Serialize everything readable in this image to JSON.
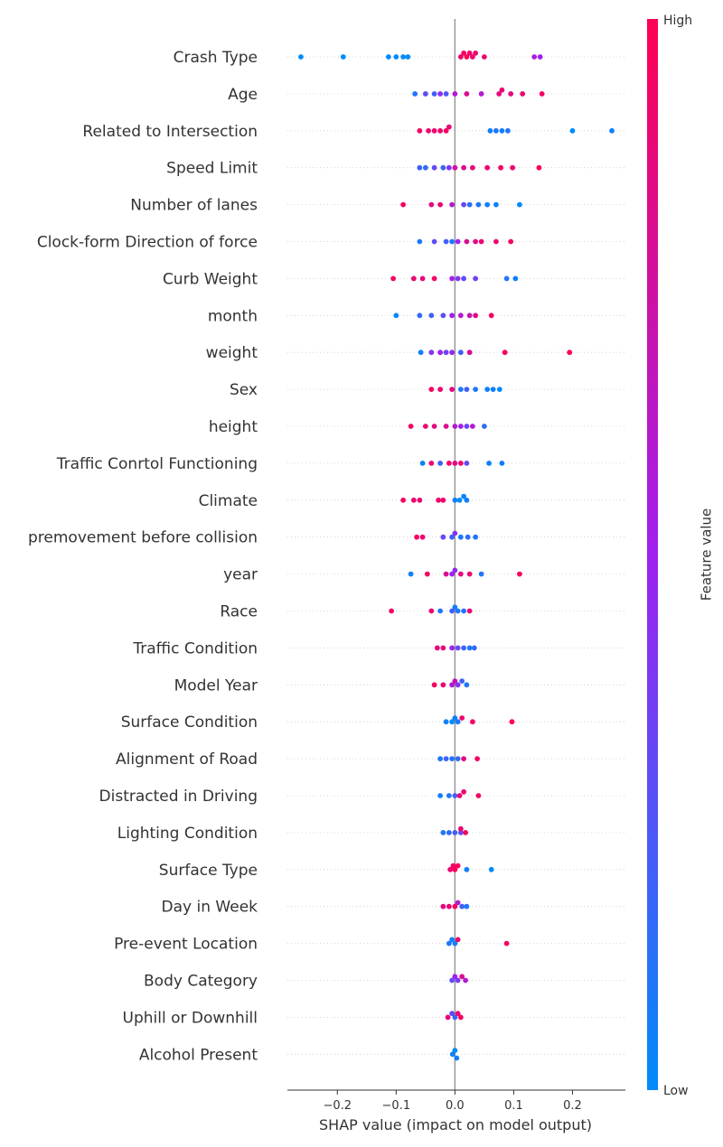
{
  "chart_data": {
    "type": "scatter",
    "subtype": "shap_beeswarm",
    "xlabel": "SHAP value (impact on model output)",
    "xlim": [
      -0.285,
      0.29
    ],
    "xticks": [
      -0.2,
      -0.1,
      0.0,
      0.1,
      0.2
    ],
    "xtick_labels": [
      "−0.2",
      "−0.1",
      "0.0",
      "0.1",
      "0.2"
    ],
    "colorbar": {
      "label": "Feature value",
      "high_label": "High",
      "low_label": "Low",
      "low_color": "#008bfb",
      "mid_color": "#a020f0",
      "high_color": "#ff0052"
    },
    "features": [
      {
        "name": "Crash Type",
        "points": [
          [
            -0.262,
            0.0
          ],
          [
            -0.19,
            0.0
          ],
          [
            -0.113,
            0.0
          ],
          [
            -0.1,
            0.0
          ],
          [
            -0.088,
            0.0
          ],
          [
            -0.08,
            0.0
          ],
          [
            0.01,
            0.9
          ],
          [
            0.015,
            0.95
          ],
          [
            0.02,
            1.0
          ],
          [
            0.025,
            0.95
          ],
          [
            0.03,
            0.9
          ],
          [
            0.035,
            0.92
          ],
          [
            0.05,
            0.9
          ],
          [
            0.135,
            0.55
          ],
          [
            0.145,
            0.5
          ]
        ]
      },
      {
        "name": "Age",
        "points": [
          [
            -0.068,
            0.1
          ],
          [
            -0.05,
            0.3
          ],
          [
            -0.035,
            0.2
          ],
          [
            -0.025,
            0.45
          ],
          [
            -0.015,
            0.25
          ],
          [
            0.0,
            0.6
          ],
          [
            0.02,
            0.8
          ],
          [
            0.045,
            0.6
          ],
          [
            0.075,
            0.85
          ],
          [
            0.08,
            0.9
          ],
          [
            0.095,
            0.85
          ],
          [
            0.115,
            0.9
          ],
          [
            0.148,
            0.95
          ]
        ]
      },
      {
        "name": "Related to Intersection",
        "points": [
          [
            -0.06,
            0.95
          ],
          [
            -0.045,
            0.9
          ],
          [
            -0.035,
            0.92
          ],
          [
            -0.025,
            0.9
          ],
          [
            -0.015,
            0.95
          ],
          [
            -0.01,
            0.88
          ],
          [
            0.06,
            0.05
          ],
          [
            0.07,
            0.1
          ],
          [
            0.08,
            0.05
          ],
          [
            0.09,
            0.1
          ],
          [
            0.2,
            0.0
          ],
          [
            0.267,
            0.05
          ]
        ]
      },
      {
        "name": "Speed Limit",
        "points": [
          [
            -0.06,
            0.2
          ],
          [
            -0.05,
            0.15
          ],
          [
            -0.035,
            0.3
          ],
          [
            -0.02,
            0.2
          ],
          [
            -0.01,
            0.4
          ],
          [
            0.0,
            0.75
          ],
          [
            0.015,
            0.8
          ],
          [
            0.03,
            0.85
          ],
          [
            0.055,
            0.9
          ],
          [
            0.078,
            0.95
          ],
          [
            0.098,
            0.9
          ],
          [
            0.143,
            1.0
          ]
        ]
      },
      {
        "name": "Number of lanes",
        "points": [
          [
            -0.088,
            0.95
          ],
          [
            -0.04,
            0.85
          ],
          [
            -0.025,
            0.9
          ],
          [
            -0.005,
            0.6
          ],
          [
            0.015,
            0.3
          ],
          [
            0.025,
            0.15
          ],
          [
            0.04,
            0.1
          ],
          [
            0.055,
            0.05
          ],
          [
            0.07,
            0.05
          ],
          [
            0.11,
            0.0
          ]
        ]
      },
      {
        "name": "Clock-form Direction of force",
        "points": [
          [
            -0.06,
            0.1
          ],
          [
            -0.035,
            0.3
          ],
          [
            -0.015,
            0.2
          ],
          [
            -0.005,
            0.1
          ],
          [
            0.005,
            0.5
          ],
          [
            0.02,
            0.8
          ],
          [
            0.035,
            0.85
          ],
          [
            0.045,
            0.9
          ],
          [
            0.07,
            0.9
          ],
          [
            0.095,
            0.95
          ]
        ]
      },
      {
        "name": "Curb Weight",
        "points": [
          [
            -0.105,
            0.95
          ],
          [
            -0.07,
            0.9
          ],
          [
            -0.055,
            0.85
          ],
          [
            -0.035,
            0.95
          ],
          [
            -0.005,
            0.5
          ],
          [
            0.005,
            0.4
          ],
          [
            0.015,
            0.3
          ],
          [
            0.035,
            0.35
          ],
          [
            0.088,
            0.1
          ],
          [
            0.103,
            0.05
          ]
        ]
      },
      {
        "name": "month",
        "points": [
          [
            -0.1,
            0.0
          ],
          [
            -0.06,
            0.15
          ],
          [
            -0.04,
            0.2
          ],
          [
            -0.02,
            0.3
          ],
          [
            -0.005,
            0.5
          ],
          [
            0.01,
            0.6
          ],
          [
            0.025,
            0.7
          ],
          [
            0.035,
            0.85
          ],
          [
            0.062,
            0.95
          ]
        ]
      },
      {
        "name": "weight",
        "points": [
          [
            -0.058,
            0.05
          ],
          [
            -0.04,
            0.4
          ],
          [
            -0.025,
            0.5
          ],
          [
            -0.015,
            0.35
          ],
          [
            -0.005,
            0.45
          ],
          [
            0.01,
            0.2
          ],
          [
            0.025,
            0.8
          ],
          [
            0.085,
            0.95
          ],
          [
            0.195,
            1.0
          ]
        ]
      },
      {
        "name": "Sex",
        "points": [
          [
            -0.04,
            0.95
          ],
          [
            -0.025,
            0.9
          ],
          [
            -0.005,
            0.85
          ],
          [
            0.01,
            0.1
          ],
          [
            0.02,
            0.2
          ],
          [
            0.035,
            0.1
          ],
          [
            0.055,
            0.05
          ],
          [
            0.065,
            0.05
          ],
          [
            0.076,
            0.0
          ]
        ]
      },
      {
        "name": "height",
        "points": [
          [
            -0.075,
            0.95
          ],
          [
            -0.05,
            0.9
          ],
          [
            -0.035,
            0.85
          ],
          [
            -0.015,
            0.8
          ],
          [
            0.0,
            0.6
          ],
          [
            0.01,
            0.5
          ],
          [
            0.02,
            0.35
          ],
          [
            0.03,
            0.6
          ],
          [
            0.05,
            0.15
          ]
        ]
      },
      {
        "name": "Traffic Conrtol Functioning",
        "points": [
          [
            -0.055,
            0.05
          ],
          [
            -0.04,
            0.9
          ],
          [
            -0.025,
            0.2
          ],
          [
            -0.01,
            0.95
          ],
          [
            0.0,
            0.85
          ],
          [
            0.01,
            0.9
          ],
          [
            0.02,
            0.3
          ],
          [
            0.058,
            0.05
          ],
          [
            0.08,
            0.05
          ]
        ]
      },
      {
        "name": "Climate",
        "points": [
          [
            -0.088,
            0.95
          ],
          [
            -0.07,
            0.9
          ],
          [
            -0.06,
            0.88
          ],
          [
            -0.028,
            0.92
          ],
          [
            -0.02,
            0.9
          ],
          [
            0.0,
            0.05
          ],
          [
            0.008,
            0.0
          ],
          [
            0.015,
            0.05
          ],
          [
            0.02,
            0.05
          ]
        ]
      },
      {
        "name": "premovement before collision",
        "points": [
          [
            -0.065,
            0.95
          ],
          [
            -0.055,
            0.9
          ],
          [
            -0.02,
            0.3
          ],
          [
            -0.005,
            0.2
          ],
          [
            0.0,
            0.4
          ],
          [
            0.01,
            0.1
          ],
          [
            0.022,
            0.15
          ],
          [
            0.035,
            0.1
          ]
        ]
      },
      {
        "name": "year",
        "points": [
          [
            -0.075,
            0.05
          ],
          [
            -0.047,
            0.95
          ],
          [
            -0.015,
            0.8
          ],
          [
            -0.005,
            0.5
          ],
          [
            0.0,
            0.45
          ],
          [
            0.01,
            0.85
          ],
          [
            0.025,
            0.9
          ],
          [
            0.045,
            0.1
          ],
          [
            0.11,
            0.95
          ]
        ]
      },
      {
        "name": "Race",
        "points": [
          [
            -0.108,
            0.95
          ],
          [
            -0.04,
            0.9
          ],
          [
            -0.025,
            0.1
          ],
          [
            -0.005,
            0.2
          ],
          [
            0.0,
            0.05
          ],
          [
            0.005,
            0.1
          ],
          [
            0.015,
            0.1
          ],
          [
            0.025,
            0.9
          ]
        ]
      },
      {
        "name": "Traffic Condition",
        "points": [
          [
            -0.03,
            0.9
          ],
          [
            -0.02,
            0.85
          ],
          [
            -0.005,
            0.5
          ],
          [
            0.005,
            0.3
          ],
          [
            0.015,
            0.2
          ],
          [
            0.025,
            0.1
          ],
          [
            0.033,
            0.15
          ]
        ]
      },
      {
        "name": "Model Year",
        "points": [
          [
            -0.035,
            0.95
          ],
          [
            -0.02,
            0.9
          ],
          [
            -0.005,
            0.6
          ],
          [
            0.0,
            0.7
          ],
          [
            0.005,
            0.4
          ],
          [
            0.012,
            0.2
          ],
          [
            0.02,
            0.1
          ]
        ]
      },
      {
        "name": "Surface Condition",
        "points": [
          [
            -0.015,
            0.05
          ],
          [
            -0.005,
            0.0
          ],
          [
            0.0,
            0.05
          ],
          [
            0.005,
            0.1
          ],
          [
            0.012,
            0.9
          ],
          [
            0.03,
            0.95
          ],
          [
            0.097,
            1.0
          ]
        ]
      },
      {
        "name": "Alignment of Road",
        "points": [
          [
            -0.025,
            0.1
          ],
          [
            -0.015,
            0.2
          ],
          [
            -0.005,
            0.1
          ],
          [
            0.005,
            0.15
          ],
          [
            0.015,
            0.85
          ],
          [
            0.038,
            0.95
          ]
        ]
      },
      {
        "name": "Distracted in Driving",
        "points": [
          [
            -0.025,
            0.05
          ],
          [
            -0.01,
            0.1
          ],
          [
            0.0,
            0.2
          ],
          [
            0.008,
            0.9
          ],
          [
            0.015,
            0.9
          ],
          [
            0.04,
            0.95
          ]
        ]
      },
      {
        "name": "Lighting Condition",
        "points": [
          [
            -0.02,
            0.1
          ],
          [
            -0.01,
            0.15
          ],
          [
            0.0,
            0.2
          ],
          [
            0.01,
            0.3
          ],
          [
            0.01,
            0.9
          ],
          [
            0.018,
            0.95
          ]
        ]
      },
      {
        "name": "Surface Type",
        "points": [
          [
            -0.008,
            0.9
          ],
          [
            -0.003,
            0.95
          ],
          [
            0.0,
            1.0
          ],
          [
            0.005,
            0.95
          ],
          [
            0.02,
            0.05
          ],
          [
            0.062,
            0.0
          ]
        ]
      },
      {
        "name": "Day in Week",
        "points": [
          [
            -0.02,
            0.85
          ],
          [
            -0.01,
            0.9
          ],
          [
            0.0,
            0.95
          ],
          [
            0.005,
            0.6
          ],
          [
            0.012,
            0.2
          ],
          [
            0.02,
            0.1
          ]
        ]
      },
      {
        "name": "Pre-event Location",
        "points": [
          [
            -0.01,
            0.1
          ],
          [
            -0.005,
            0.05
          ],
          [
            0.0,
            0.05
          ],
          [
            0.005,
            0.9
          ],
          [
            0.088,
            0.95
          ]
        ]
      },
      {
        "name": "Body Category",
        "points": [
          [
            -0.005,
            0.3
          ],
          [
            0.0,
            0.5
          ],
          [
            0.005,
            0.4
          ],
          [
            0.012,
            0.8
          ],
          [
            0.018,
            0.6
          ]
        ]
      },
      {
        "name": "Uphill or Downhill",
        "points": [
          [
            -0.012,
            0.9
          ],
          [
            -0.005,
            0.3
          ],
          [
            0.0,
            0.2
          ],
          [
            0.005,
            0.9
          ],
          [
            0.01,
            0.95
          ]
        ]
      },
      {
        "name": "Alcohol Present",
        "points": [
          [
            -0.004,
            0.05
          ],
          [
            0.0,
            0.0
          ],
          [
            0.003,
            0.05
          ]
        ]
      }
    ]
  }
}
